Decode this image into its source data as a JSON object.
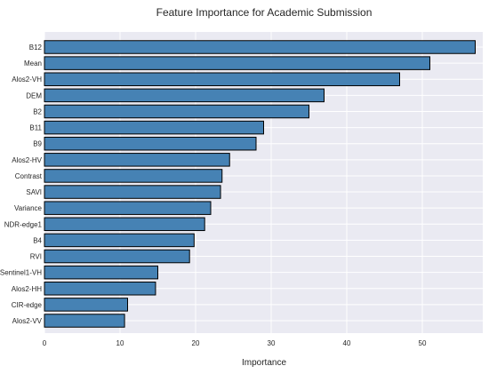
{
  "chart_data": {
    "type": "bar",
    "orientation": "horizontal",
    "title": "Feature Importance for Academic Submission",
    "xlabel": "Importance",
    "ylabel": "",
    "xlim": [
      0,
      58
    ],
    "xticks": [
      0,
      10,
      20,
      30,
      40,
      50
    ],
    "grid": true,
    "legend": "none",
    "categories": [
      "B12",
      "Mean",
      "Alos2-VH",
      "DEM",
      "B2",
      "B11",
      "B9",
      "Alos2-HV",
      "Contrast",
      "SAVI",
      "Variance",
      "NDR-edge1",
      "B4",
      "RVI",
      "Sentinel1-VH",
      "Alos2-HH",
      "CIR-edge",
      "Alos2-VV"
    ],
    "values": [
      57.0,
      51.0,
      47.0,
      37.0,
      35.0,
      29.0,
      28.0,
      24.5,
      23.5,
      23.3,
      22.0,
      21.2,
      19.8,
      19.2,
      15.0,
      14.7,
      11.0,
      10.6
    ],
    "colors": {
      "bar": "#4682b4",
      "bar_edge": "#000000",
      "plot_bg": "#eaeaf2",
      "grid": "#ffffff"
    }
  }
}
